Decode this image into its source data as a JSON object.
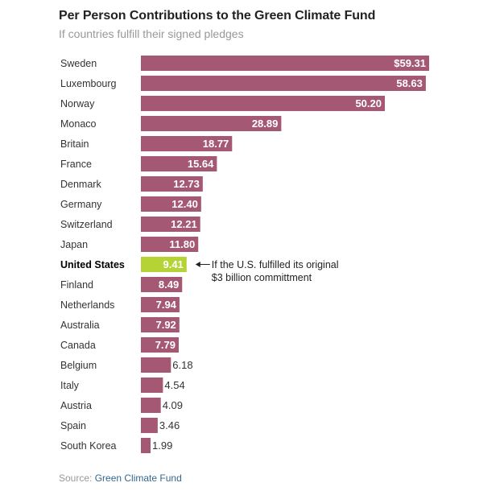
{
  "chart_data": {
    "type": "bar",
    "orientation": "horizontal",
    "title": "Per Person Contributions to the Green Climate Fund",
    "subtitle": "If countries fulfill their signed pledges",
    "xlabel": "",
    "ylabel": "",
    "value_prefix_first": "$",
    "xlim": [
      0,
      59.31
    ],
    "grid": false,
    "categories": [
      "Sweden",
      "Luxembourg",
      "Norway",
      "Monaco",
      "Britain",
      "France",
      "Denmark",
      "Germany",
      "Switzerland",
      "Japan",
      "United States",
      "Finland",
      "Netherlands",
      "Australia",
      "Canada",
      "Belgium",
      "Italy",
      "Austria",
      "Spain",
      "South Korea"
    ],
    "values": [
      59.31,
      58.63,
      50.2,
      28.89,
      18.77,
      15.64,
      12.73,
      12.4,
      12.21,
      11.8,
      9.41,
      8.49,
      7.94,
      7.92,
      7.79,
      6.18,
      4.54,
      4.09,
      3.46,
      1.99
    ],
    "value_labels": [
      "$59.31",
      "58.63",
      "50.20",
      "28.89",
      "18.77",
      "15.64",
      "12.73",
      "12.40",
      "12.21",
      "11.80",
      "9.41",
      "8.49",
      "7.94",
      "7.92",
      "7.79",
      "6.18",
      "4.54",
      "4.09",
      "3.46",
      "1.99"
    ],
    "highlight": "United States",
    "colors": {
      "bar": "#a55874",
      "highlight": "#b5d334",
      "label_inside": "#ffffff",
      "label_outside": "#333333"
    },
    "annotation": {
      "target": "United States",
      "lines": [
        "If the U.S. fulfilled its original",
        "$3 billion committment"
      ]
    }
  },
  "source": {
    "prefix": "Source:",
    "name": "Green Climate Fund"
  }
}
